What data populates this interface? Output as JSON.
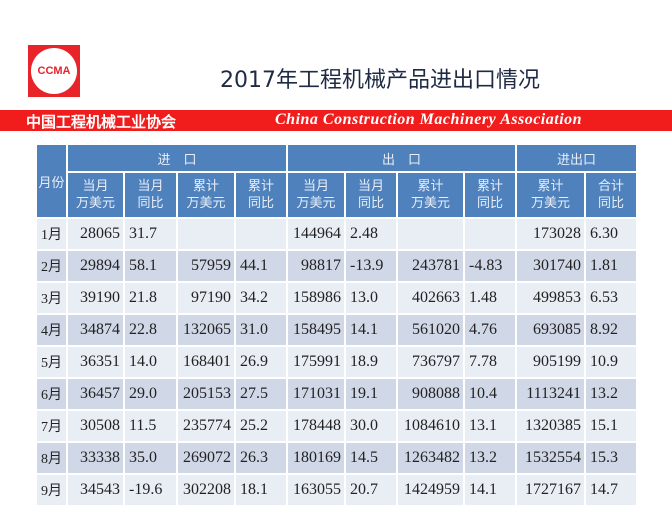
{
  "logo_text": "CCMA",
  "title": "2017年工程机械产品进出口情况",
  "banner": {
    "cn": "中国工程机械工业协会",
    "en": "China Construction Machinery Association"
  },
  "table": {
    "month_header": "月份",
    "groups": [
      "进　口",
      "出　口",
      "进出口"
    ],
    "subheaders": [
      [
        "当月",
        "万美元"
      ],
      [
        "当月",
        "同比"
      ],
      [
        "累计",
        "万美元"
      ],
      [
        "累计",
        "同比"
      ],
      [
        "当月",
        "万美元"
      ],
      [
        "当月",
        "同比"
      ],
      [
        "累计",
        "万美元"
      ],
      [
        "累计",
        "同比"
      ],
      [
        "累计",
        "万美元"
      ],
      [
        "合计",
        "同比"
      ]
    ],
    "rows": [
      [
        "1月",
        "28065",
        "31.7",
        "",
        "",
        "144964",
        "2.48",
        "",
        "",
        "173028",
        "6.30"
      ],
      [
        "2月",
        "29894",
        "58.1",
        "57959",
        "44.1",
        "98817",
        "-13.9",
        "243781",
        "-4.83",
        "301740",
        "1.81"
      ],
      [
        "3月",
        "39190",
        "21.8",
        "97190",
        "34.2",
        "158986",
        "13.0",
        "402663",
        "1.48",
        "499853",
        "6.53"
      ],
      [
        "4月",
        "34874",
        "22.8",
        "132065",
        "31.0",
        "158495",
        "14.1",
        "561020",
        "4.76",
        "693085",
        "8.92"
      ],
      [
        "5月",
        "36351",
        "14.0",
        "168401",
        "26.9",
        "175991",
        "18.9",
        "736797",
        "7.78",
        "905199",
        "10.9"
      ],
      [
        "6月",
        "36457",
        "29.0",
        "205153",
        "27.5",
        "171031",
        "19.1",
        "908088",
        "10.4",
        "1113241",
        "13.2"
      ],
      [
        "7月",
        "30508",
        "11.5",
        "235774",
        "25.2",
        "178448",
        "30.0",
        "1084610",
        "13.1",
        "1320385",
        "15.1"
      ],
      [
        "8月",
        "33338",
        "35.0",
        "269072",
        "26.3",
        "180169",
        "14.5",
        "1263482",
        "13.2",
        "1532554",
        "15.3"
      ],
      [
        "9月",
        "34543",
        "-19.6",
        "302208",
        "18.1",
        "163055",
        "20.7",
        "1424959",
        "14.1",
        "1727167",
        "14.7"
      ]
    ]
  },
  "colors": {
    "header": "#4f81bd",
    "row_light": "#e9edf4",
    "row_dark": "#d0d8e8",
    "banner": "#f11c1c"
  }
}
